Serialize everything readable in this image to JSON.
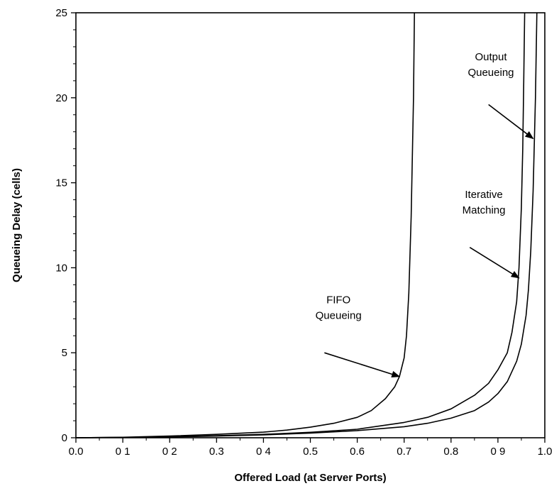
{
  "chart_data": {
    "type": "line",
    "title": "",
    "xlabel": "Offered Load (at Server Ports)",
    "ylabel": "Queueing Delay (cells)",
    "xlim": [
      0.0,
      1.0
    ],
    "ylim": [
      0,
      25
    ],
    "grid": false,
    "x_tick_labels": [
      "0.0",
      "0 1",
      "0 2",
      "0.3",
      "0 4",
      "0.5",
      "0.6",
      "0.7",
      "0.8",
      "0 9",
      "1.0"
    ],
    "y_tick_labels": [
      "0",
      "5",
      "10",
      "15",
      "20",
      "25"
    ],
    "series": [
      {
        "key": "fifo",
        "x": [
          0.0,
          0.1,
          0.2,
          0.3,
          0.4,
          0.45,
          0.5,
          0.55,
          0.6,
          0.63,
          0.66,
          0.68,
          0.69,
          0.7,
          0.705,
          0.71,
          0.715,
          0.72,
          0.722
        ],
        "y": [
          0.0,
          0.03,
          0.1,
          0.2,
          0.33,
          0.45,
          0.62,
          0.85,
          1.2,
          1.6,
          2.3,
          3.0,
          3.6,
          4.7,
          6.0,
          8.5,
          13.0,
          20.0,
          25.0
        ]
      },
      {
        "key": "iterative",
        "x": [
          0.0,
          0.1,
          0.2,
          0.3,
          0.4,
          0.5,
          0.6,
          0.65,
          0.7,
          0.75,
          0.8,
          0.85,
          0.88,
          0.9,
          0.92,
          0.93,
          0.94,
          0.945,
          0.95,
          0.953,
          0.955,
          0.957
        ],
        "y": [
          0.0,
          0.02,
          0.06,
          0.12,
          0.2,
          0.32,
          0.5,
          0.7,
          0.9,
          1.2,
          1.7,
          2.5,
          3.2,
          4.0,
          5.0,
          6.2,
          8.0,
          10.0,
          13.5,
          17.0,
          21.0,
          25.0
        ]
      },
      {
        "key": "output",
        "x": [
          0.0,
          0.1,
          0.2,
          0.3,
          0.4,
          0.5,
          0.6,
          0.7,
          0.75,
          0.8,
          0.85,
          0.88,
          0.9,
          0.92,
          0.94,
          0.95,
          0.96,
          0.965,
          0.97,
          0.975,
          0.98,
          0.983
        ],
        "y": [
          0.0,
          0.02,
          0.05,
          0.1,
          0.17,
          0.27,
          0.42,
          0.65,
          0.85,
          1.15,
          1.6,
          2.1,
          2.6,
          3.3,
          4.5,
          5.5,
          7.2,
          8.7,
          11.0,
          14.5,
          20.0,
          25.0
        ]
      }
    ],
    "annotations": [
      {
        "key": "fifo",
        "lines": [
          "FIFO",
          "Queueing"
        ],
        "text_x": 0.56,
        "text_y": 7.9,
        "arrow_from": [
          0.53,
          5.0
        ],
        "arrow_to": [
          0.69,
          3.6
        ]
      },
      {
        "key": "iterative",
        "lines": [
          "Iterative",
          "Matching"
        ],
        "text_x": 0.87,
        "text_y": 14.1,
        "arrow_from": [
          0.84,
          11.2
        ],
        "arrow_to": [
          0.945,
          9.4
        ]
      },
      {
        "key": "output",
        "lines": [
          "Output",
          "Queueing"
        ],
        "text_x": 0.885,
        "text_y": 22.2,
        "arrow_from": [
          0.88,
          19.6
        ],
        "arrow_to": [
          0.975,
          17.6
        ]
      }
    ]
  }
}
